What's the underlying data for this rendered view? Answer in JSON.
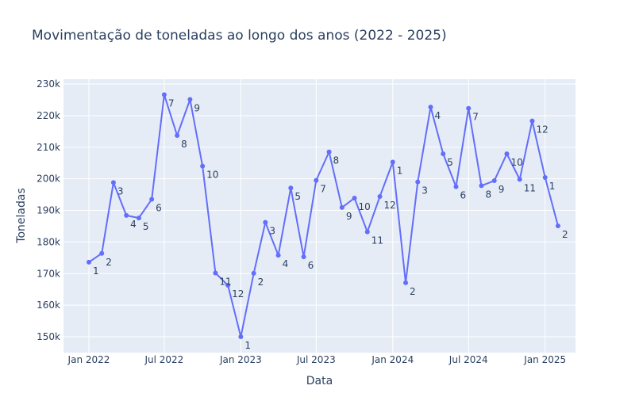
{
  "chart_data": {
    "type": "line",
    "title": "Movimentação de toneladas ao longo dos anos (2022 - 2025)",
    "xlabel": "Data",
    "ylabel": "Toneladas",
    "grid": true,
    "legend": "none",
    "line_color": "#636efa",
    "plot_bg": "#e5ecf6",
    "xlim": [
      "2021-11-01",
      "2025-03-15"
    ],
    "ylim": [
      145000,
      231500
    ],
    "x_ticks": [
      {
        "date": "2022-01-01",
        "label": "Jan 2022"
      },
      {
        "date": "2022-07-01",
        "label": "Jul 2022"
      },
      {
        "date": "2023-01-01",
        "label": "Jan 2023"
      },
      {
        "date": "2023-07-01",
        "label": "Jul 2023"
      },
      {
        "date": "2024-01-01",
        "label": "Jan 2024"
      },
      {
        "date": "2024-07-01",
        "label": "Jul 2024"
      },
      {
        "date": "2025-01-01",
        "label": "Jan 2025"
      }
    ],
    "y_ticks": [
      {
        "value": 150000,
        "label": "150k"
      },
      {
        "value": 160000,
        "label": "160k"
      },
      {
        "value": 170000,
        "label": "170k"
      },
      {
        "value": 180000,
        "label": "180k"
      },
      {
        "value": 190000,
        "label": "190k"
      },
      {
        "value": 200000,
        "label": "200k"
      },
      {
        "value": 210000,
        "label": "210k"
      },
      {
        "value": 220000,
        "label": "220k"
      },
      {
        "value": 230000,
        "label": "230k"
      }
    ],
    "series": [
      {
        "points": [
          {
            "x": "2022-01-01",
            "y": 173600,
            "label": "1"
          },
          {
            "x": "2022-02-01",
            "y": 176400,
            "label": "2"
          },
          {
            "x": "2022-03-01",
            "y": 198800,
            "label": "3"
          },
          {
            "x": "2022-04-01",
            "y": 188400,
            "label": "4"
          },
          {
            "x": "2022-05-01",
            "y": 187600,
            "label": "5"
          },
          {
            "x": "2022-06-01",
            "y": 193500,
            "label": "6"
          },
          {
            "x": "2022-07-01",
            "y": 226600,
            "label": "7"
          },
          {
            "x": "2022-08-01",
            "y": 213700,
            "label": "8"
          },
          {
            "x": "2022-09-01",
            "y": 225100,
            "label": "9"
          },
          {
            "x": "2022-10-01",
            "y": 204000,
            "label": "10"
          },
          {
            "x": "2022-11-01",
            "y": 170200,
            "label": "11"
          },
          {
            "x": "2022-12-01",
            "y": 166300,
            "label": "12"
          },
          {
            "x": "2023-01-01",
            "y": 150000,
            "label": "1"
          },
          {
            "x": "2023-02-01",
            "y": 170100,
            "label": "2"
          },
          {
            "x": "2023-03-01",
            "y": 186200,
            "label": "3"
          },
          {
            "x": "2023-04-01",
            "y": 175800,
            "label": "4"
          },
          {
            "x": "2023-05-01",
            "y": 197100,
            "label": "5"
          },
          {
            "x": "2023-06-01",
            "y": 175300,
            "label": "6"
          },
          {
            "x": "2023-07-01",
            "y": 199500,
            "label": "7"
          },
          {
            "x": "2023-08-01",
            "y": 208500,
            "label": "8"
          },
          {
            "x": "2023-09-01",
            "y": 190900,
            "label": "9"
          },
          {
            "x": "2023-10-01",
            "y": 193900,
            "label": "10"
          },
          {
            "x": "2023-11-01",
            "y": 183200,
            "label": "11"
          },
          {
            "x": "2023-12-01",
            "y": 194400,
            "label": "12"
          },
          {
            "x": "2024-01-01",
            "y": 205300,
            "label": "1"
          },
          {
            "x": "2024-02-01",
            "y": 167100,
            "label": "2"
          },
          {
            "x": "2024-03-01",
            "y": 199000,
            "label": "3"
          },
          {
            "x": "2024-04-01",
            "y": 222700,
            "label": "4"
          },
          {
            "x": "2024-05-01",
            "y": 207900,
            "label": "5"
          },
          {
            "x": "2024-06-01",
            "y": 197500,
            "label": "6"
          },
          {
            "x": "2024-07-01",
            "y": 222300,
            "label": "7"
          },
          {
            "x": "2024-08-01",
            "y": 197800,
            "label": "8"
          },
          {
            "x": "2024-09-01",
            "y": 199400,
            "label": "9"
          },
          {
            "x": "2024-10-01",
            "y": 207900,
            "label": "10"
          },
          {
            "x": "2024-11-01",
            "y": 199800,
            "label": "11"
          },
          {
            "x": "2024-12-01",
            "y": 218300,
            "label": "12"
          },
          {
            "x": "2025-01-01",
            "y": 200400,
            "label": "1"
          },
          {
            "x": "2025-02-01",
            "y": 185100,
            "label": "2"
          }
        ]
      }
    ]
  }
}
